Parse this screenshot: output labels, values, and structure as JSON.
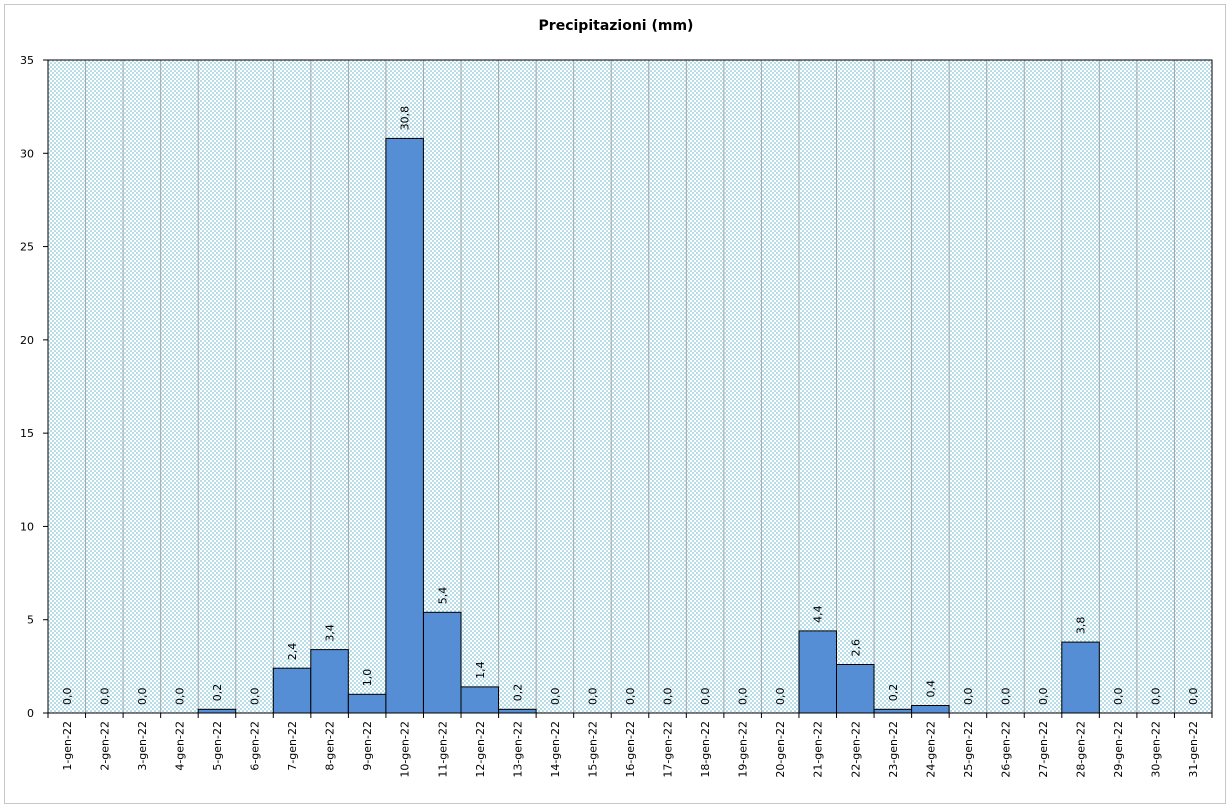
{
  "chart_data": {
    "type": "bar",
    "title": "Precipitazioni  (mm)",
    "xlabel": "",
    "ylabel": "",
    "ylim": [
      0,
      35
    ],
    "yticks": [
      0,
      5,
      10,
      15,
      20,
      25,
      30,
      35
    ],
    "grid": "vertical",
    "legend": "none",
    "categories": [
      "1-gen-22",
      "2-gen-22",
      "3-gen-22",
      "4-gen-22",
      "5-gen-22",
      "6-gen-22",
      "7-gen-22",
      "8-gen-22",
      "9-gen-22",
      "10-gen-22",
      "11-gen-22",
      "12-gen-22",
      "13-gen-22",
      "14-gen-22",
      "15-gen-22",
      "16-gen-22",
      "17-gen-22",
      "18-gen-22",
      "19-gen-22",
      "20-gen-22",
      "21-gen-22",
      "22-gen-22",
      "23-gen-22",
      "24-gen-22",
      "25-gen-22",
      "26-gen-22",
      "27-gen-22",
      "28-gen-22",
      "29-gen-22",
      "30-gen-22",
      "31-gen-22"
    ],
    "values": [
      0.0,
      0.0,
      0.0,
      0.0,
      0.2,
      0.0,
      2.4,
      3.4,
      1.0,
      30.8,
      5.4,
      1.4,
      0.2,
      0.0,
      0.0,
      0.0,
      0.0,
      0.0,
      0.0,
      0.0,
      4.4,
      2.6,
      0.2,
      0.4,
      0.0,
      0.0,
      0.0,
      3.8,
      0.0,
      0.0,
      0.0
    ],
    "value_labels": [
      "0,0",
      "0,0",
      "0,0",
      "0,0",
      "0,2",
      "0,0",
      "2,4",
      "3,4",
      "1,0",
      "30,8",
      "5,4",
      "1,4",
      "0,2",
      "0,0",
      "0,0",
      "0,0",
      "0,0",
      "0,0",
      "0,0",
      "0,0",
      "4,4",
      "2,6",
      "0,2",
      "0,4",
      "0,0",
      "0,0",
      "0,0",
      "3,8",
      "0,0",
      "0,0",
      "0,0"
    ],
    "colors": {
      "bar_fill": "#558ed5",
      "bar_stroke": "#000000",
      "plot_background": "#d6eaf0",
      "grid": "#a6a6a6"
    }
  }
}
